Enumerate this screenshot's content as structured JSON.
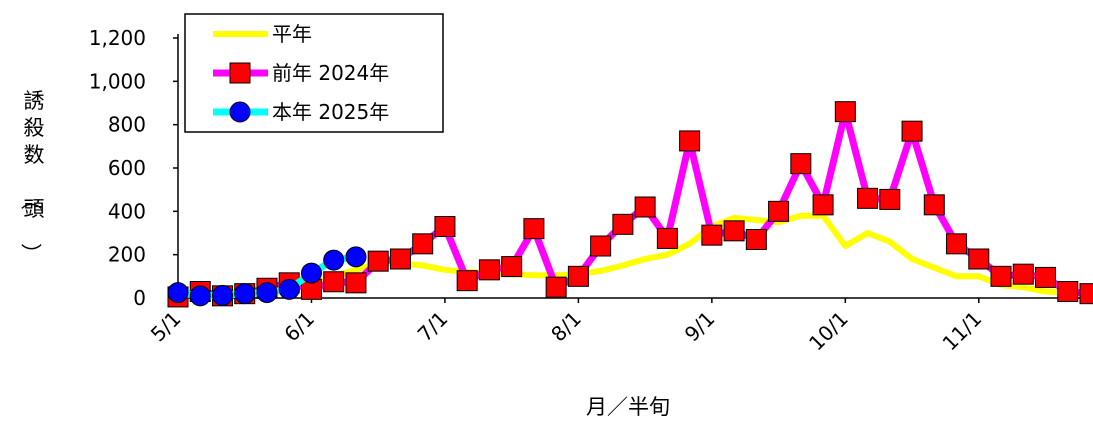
{
  "chart_data": {
    "type": "line",
    "xlabel": "月／半旬",
    "ylabel": "誘殺数（頭）",
    "ylim": [
      0,
      1200
    ],
    "yticks": [
      0,
      200,
      400,
      600,
      800,
      1000,
      1200
    ],
    "ytick_labels": [
      "0",
      "200",
      "400",
      "600",
      "800",
      "1,000",
      "1,200"
    ],
    "xtick_labels": [
      "5/1",
      "6/1",
      "7/1",
      "8/1",
      "9/1",
      "10/1",
      "11/1"
    ],
    "xtick_positions": [
      0,
      6,
      12,
      18,
      24,
      30,
      36
    ],
    "x_count": 42,
    "legend_position": "top-left",
    "grid": false,
    "series": [
      {
        "name": "平年",
        "color": "#ffff00",
        "marker": "none",
        "values": [
          15,
          20,
          25,
          30,
          40,
          50,
          60,
          100,
          130,
          160,
          160,
          150,
          130,
          120,
          115,
          110,
          105,
          105,
          110,
          125,
          150,
          180,
          200,
          250,
          330,
          370,
          360,
          350,
          380,
          380,
          240,
          300,
          260,
          180,
          140,
          100,
          100,
          60,
          50,
          30,
          25,
          20
        ]
      },
      {
        "name": "前年 2024年",
        "color": "#ff00ff",
        "marker": "square",
        "marker_color": "#ff0000",
        "values": [
          5,
          30,
          10,
          20,
          45,
          70,
          40,
          75,
          70,
          170,
          180,
          250,
          330,
          80,
          130,
          145,
          320,
          50,
          100,
          240,
          340,
          420,
          275,
          725,
          290,
          310,
          270,
          400,
          620,
          430,
          860,
          460,
          455,
          770,
          430,
          250,
          180,
          100,
          110,
          95,
          30,
          20
        ]
      },
      {
        "name": "本年 2025年",
        "color": "#00ffff",
        "marker": "circle",
        "marker_color": "#0000ff",
        "values": [
          25,
          10,
          12,
          20,
          25,
          40,
          115,
          175,
          190
        ]
      }
    ]
  }
}
